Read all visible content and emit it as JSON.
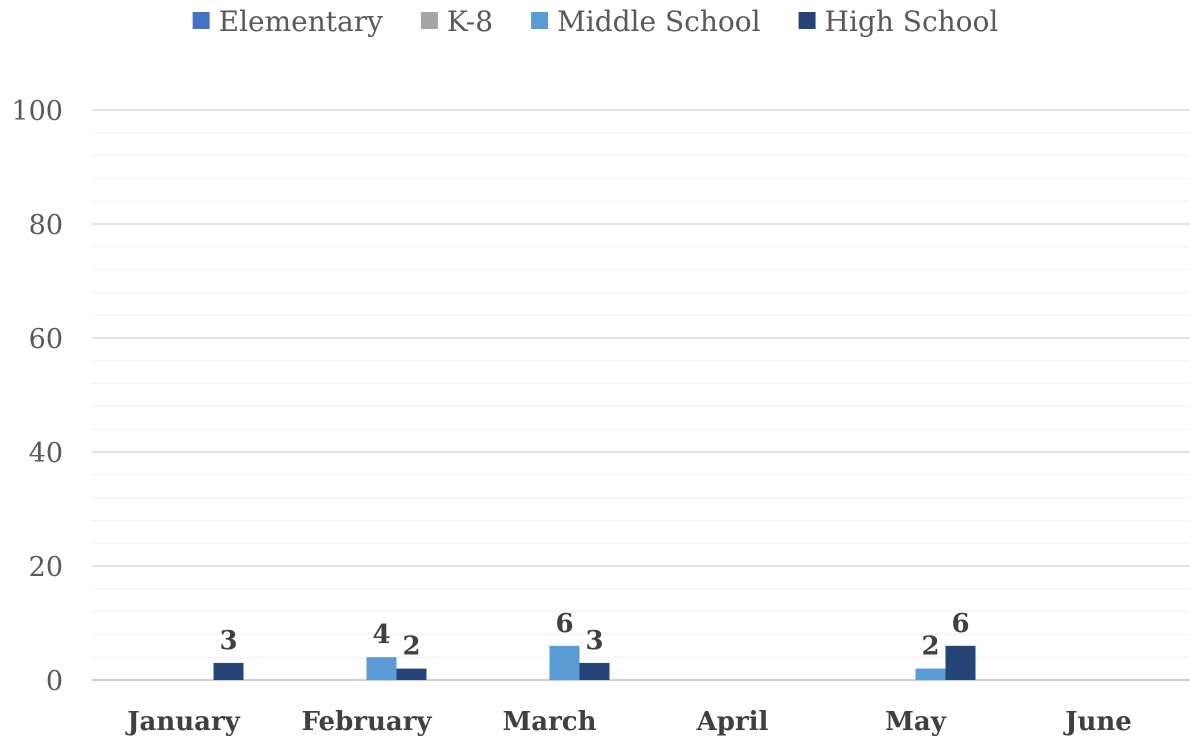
{
  "chart_data": {
    "type": "bar",
    "title": "",
    "xlabel": "",
    "ylabel": "",
    "ylim": [
      0,
      100
    ],
    "yticks": [
      0,
      20,
      40,
      60,
      80,
      100
    ],
    "grid": true,
    "legend_position": "top",
    "categories": [
      "January",
      "February",
      "March",
      "April",
      "May",
      "June"
    ],
    "series": [
      {
        "name": "Elementary",
        "color": "#4472C4",
        "values": [
          0,
          0,
          0,
          0,
          0,
          0
        ]
      },
      {
        "name": "K-8",
        "color": "#A5A5A5",
        "values": [
          0,
          0,
          0,
          0,
          0,
          0
        ]
      },
      {
        "name": "Middle School",
        "color": "#5B9BD5",
        "values": [
          0,
          4,
          6,
          0,
          2,
          0
        ]
      },
      {
        "name": "High School",
        "color": "#264478",
        "values": [
          3,
          2,
          3,
          0,
          6,
          0
        ]
      }
    ]
  }
}
